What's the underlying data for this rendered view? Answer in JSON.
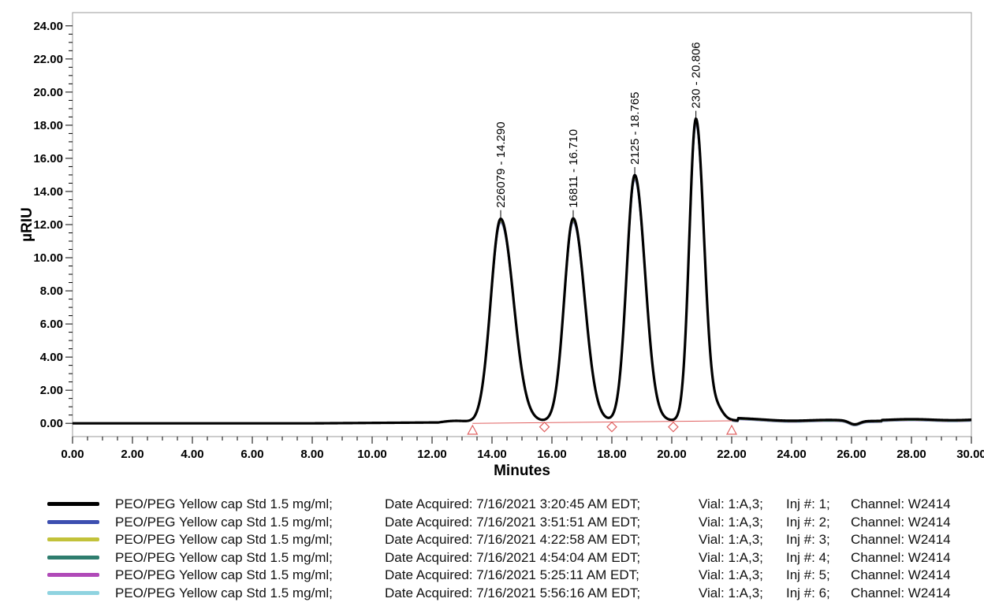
{
  "chart_data": {
    "type": "line",
    "xlabel": "Minutes",
    "ylabel": "µRIU",
    "xlim": [
      0,
      30
    ],
    "ylim": [
      -0.8,
      24.8
    ],
    "x_ticks": [
      "0.00",
      "2.00",
      "4.00",
      "6.00",
      "8.00",
      "10.00",
      "12.00",
      "14.00",
      "16.00",
      "18.00",
      "20.00",
      "22.00",
      "24.00",
      "26.00",
      "28.00",
      "30.00"
    ],
    "y_ticks": [
      "0.00",
      "2.00",
      "4.00",
      "6.00",
      "8.00",
      "10.00",
      "12.00",
      "14.00",
      "16.00",
      "18.00",
      "20.00",
      "22.00",
      "24.00"
    ],
    "grid": false,
    "peaks": [
      {
        "label": "226079 - 14.290",
        "x": 14.29,
        "height": 12.3,
        "width_left": 0.33,
        "width_right": 0.42
      },
      {
        "label": "16811 - 16.710",
        "x": 16.71,
        "height": 12.3,
        "width_left": 0.3,
        "width_right": 0.38
      },
      {
        "label": "2125 - 18.765",
        "x": 18.765,
        "height": 14.9,
        "width_left": 0.27,
        "width_right": 0.34
      },
      {
        "label": "230 - 20.806",
        "x": 20.806,
        "height": 18.3,
        "width_left": 0.22,
        "width_right": 0.27
      }
    ],
    "integration_markers": [
      {
        "shape": "triangle",
        "x": 13.35,
        "y": -0.42
      },
      {
        "shape": "diamond",
        "x": 15.75,
        "y": -0.22
      },
      {
        "shape": "diamond",
        "x": 18.0,
        "y": -0.22
      },
      {
        "shape": "diamond",
        "x": 20.05,
        "y": -0.22
      },
      {
        "shape": "triangle",
        "x": 22.0,
        "y": -0.42
      }
    ],
    "baseline": {
      "x": [
        13.35,
        22.0
      ],
      "y": [
        0.0,
        0.15
      ]
    },
    "series": [
      {
        "name": "PEO/PEG Yellow cap Std 1.5 mg/ml;",
        "color": "#000000"
      },
      {
        "name": "PEO/PEG Yellow cap Std 1.5 mg/ml;",
        "color": "#3d4fb0"
      },
      {
        "name": "PEO/PEG Yellow cap Std 1.5 mg/ml;",
        "color": "#c2c23a"
      },
      {
        "name": "PEO/PEG Yellow cap Std 1.5 mg/ml;",
        "color": "#2e7d6e"
      },
      {
        "name": "PEO/PEG Yellow cap Std 1.5 mg/ml;",
        "color": "#b04ab8"
      },
      {
        "name": "PEO/PEG Yellow cap Std 1.5 mg/ml;",
        "color": "#8fd3e0"
      }
    ],
    "marker_color": "#e06060"
  },
  "legend": [
    {
      "name": "PEO/PEG Yellow cap Std 1.5 mg/ml;",
      "date": "Date Acquired: 7/16/2021 3:20:45 AM EDT;",
      "vial": "Vial: 1:A,3;",
      "inj": "Inj #: 1;",
      "channel": "Channel: W2414",
      "color": "#000000"
    },
    {
      "name": "PEO/PEG Yellow cap Std 1.5 mg/ml;",
      "date": "Date Acquired: 7/16/2021 3:51:51 AM EDT;",
      "vial": "Vial: 1:A,3;",
      "inj": "Inj #: 2;",
      "channel": "Channel: W2414",
      "color": "#3d4fb0"
    },
    {
      "name": "PEO/PEG Yellow cap Std 1.5 mg/ml;",
      "date": "Date Acquired: 7/16/2021 4:22:58 AM EDT;",
      "vial": "Vial: 1:A,3;",
      "inj": "Inj #: 3;",
      "channel": "Channel: W2414",
      "color": "#c2c23a"
    },
    {
      "name": "PEO/PEG Yellow cap Std 1.5 mg/ml;",
      "date": "Date Acquired: 7/16/2021 4:54:04 AM EDT;",
      "vial": "Vial: 1:A,3;",
      "inj": "Inj #: 4;",
      "channel": "Channel: W2414",
      "color": "#2e7d6e"
    },
    {
      "name": "PEO/PEG Yellow cap Std 1.5 mg/ml;",
      "date": "Date Acquired: 7/16/2021 5:25:11 AM EDT;",
      "vial": "Vial: 1:A,3;",
      "inj": "Inj #: 5;",
      "channel": "Channel: W2414",
      "color": "#b04ab8"
    },
    {
      "name": "PEO/PEG Yellow cap Std 1.5 mg/ml;",
      "date": "Date Acquired: 7/16/2021 5:56:16 AM EDT;",
      "vial": "Vial: 1:A,3;",
      "inj": "Inj #: 6;",
      "channel": "Channel: W2414",
      "color": "#8fd3e0"
    }
  ]
}
